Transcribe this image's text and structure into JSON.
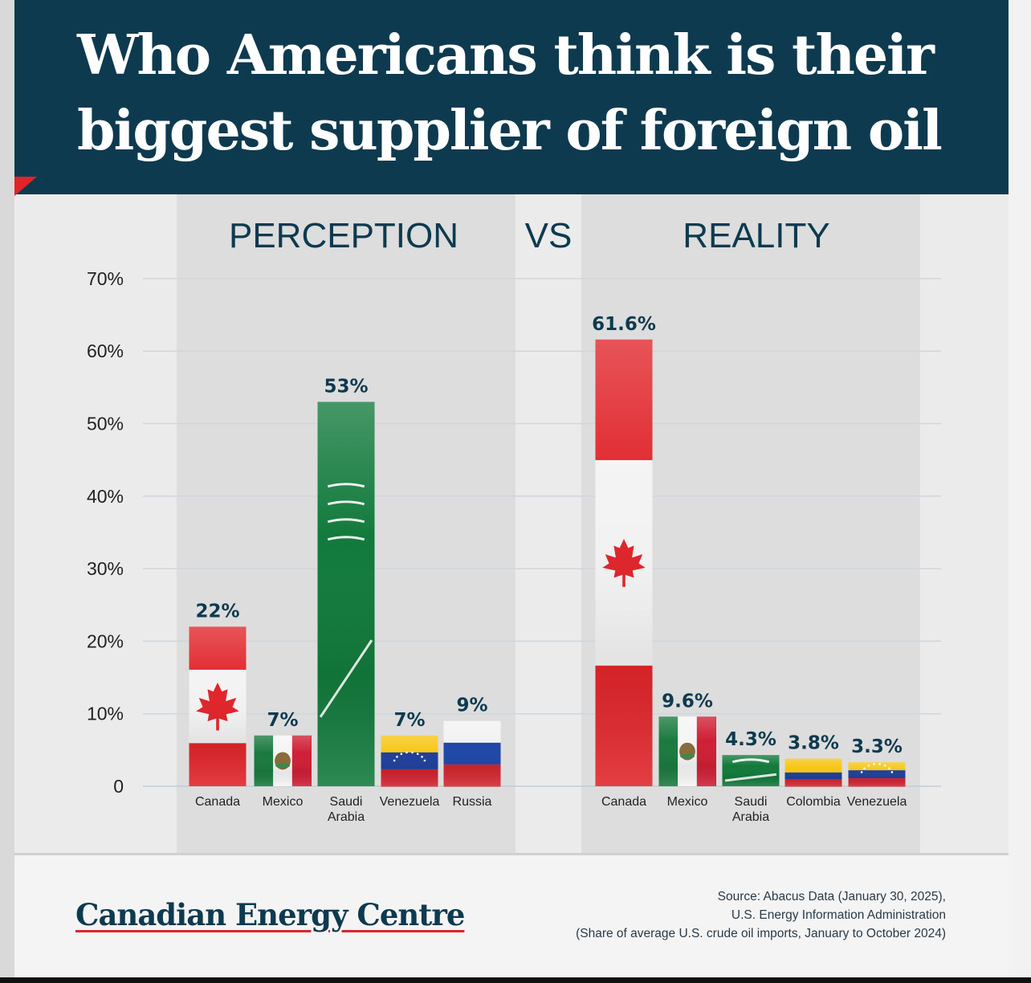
{
  "title": "Who Americans think is their biggest supplier of foreign oil",
  "logo": "Canadian Energy Centre",
  "source": {
    "line1": "Source: Abacus Data (January 30, 2025),",
    "line2": "U.S. Energy Information Administration",
    "line3": "(Share of average U.S. crude oil imports, January to October 2024)"
  },
  "colors": {
    "header_bg": "#0e3a4f",
    "accent_red": "#e0242a",
    "label_text": "#0e3a4f",
    "panel_bg": "#dddddd"
  },
  "chart_data": [
    {
      "type": "bar",
      "title": "PERCEPTION",
      "categories": [
        "Canada",
        "Mexico",
        "Saudi Arabia",
        "Venezuela",
        "Russia"
      ],
      "values": [
        22,
        7,
        53,
        7,
        9
      ],
      "data_labels": [
        "22%",
        "7%",
        "53%",
        "7%",
        "9%"
      ],
      "flags": [
        "canada-flag",
        "mexico-flag",
        "saudi-arabia-flag",
        "venezuela-flag",
        "russia-flag"
      ],
      "yticks": [
        "0",
        "10%",
        "20%",
        "30%",
        "40%",
        "50%",
        "60%",
        "70%"
      ],
      "ylim": [
        0,
        70
      ],
      "grid": true
    },
    {
      "type": "bar",
      "title": "REALITY",
      "categories": [
        "Canada",
        "Mexico",
        "Saudi Arabia",
        "Colombia",
        "Venezuela"
      ],
      "values": [
        61.6,
        9.6,
        4.3,
        3.8,
        3.3
      ],
      "data_labels": [
        "61.6%",
        "9.6%",
        "4.3%",
        "3.8%",
        "3.3%"
      ],
      "flags": [
        "canada-flag",
        "mexico-flag",
        "saudi-arabia-flag",
        "colombia-flag",
        "venezuela-flag"
      ],
      "ylim": [
        0,
        70
      ],
      "grid": true
    }
  ],
  "vs_label": "VS"
}
